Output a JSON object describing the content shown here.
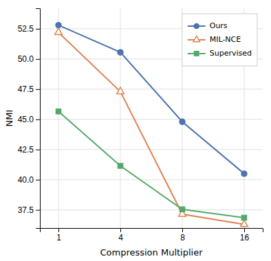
{
  "chart_data": {
    "type": "line",
    "xlabel": "Compression Multiplier",
    "ylabel": "NMI",
    "categories": [
      "1",
      "4",
      "8",
      "16"
    ],
    "series": [
      {
        "name": "Ours",
        "color": "#4C72B0",
        "marker": "circle",
        "values": [
          52.8,
          50.55,
          44.8,
          40.5
        ]
      },
      {
        "name": "MIL-NCE",
        "color": "#DD8452",
        "marker": "triangle",
        "values": [
          52.2,
          47.3,
          37.15,
          36.3
        ]
      },
      {
        "name": "Supervised",
        "color": "#55A868",
        "marker": "square",
        "values": [
          45.65,
          41.15,
          37.55,
          36.85
        ]
      }
    ],
    "ylim": [
      36.0,
      54.2
    ],
    "yticks": [
      37.5,
      {
        "value": 40.0,
        "label": "40.0"
      },
      42.5,
      {
        "value": 45.0,
        "label": "45.0"
      },
      47.5,
      {
        "value": 50.0,
        "label": "50.0"
      },
      52.5
    ],
    "grid": true,
    "legend": "upper-right"
  }
}
